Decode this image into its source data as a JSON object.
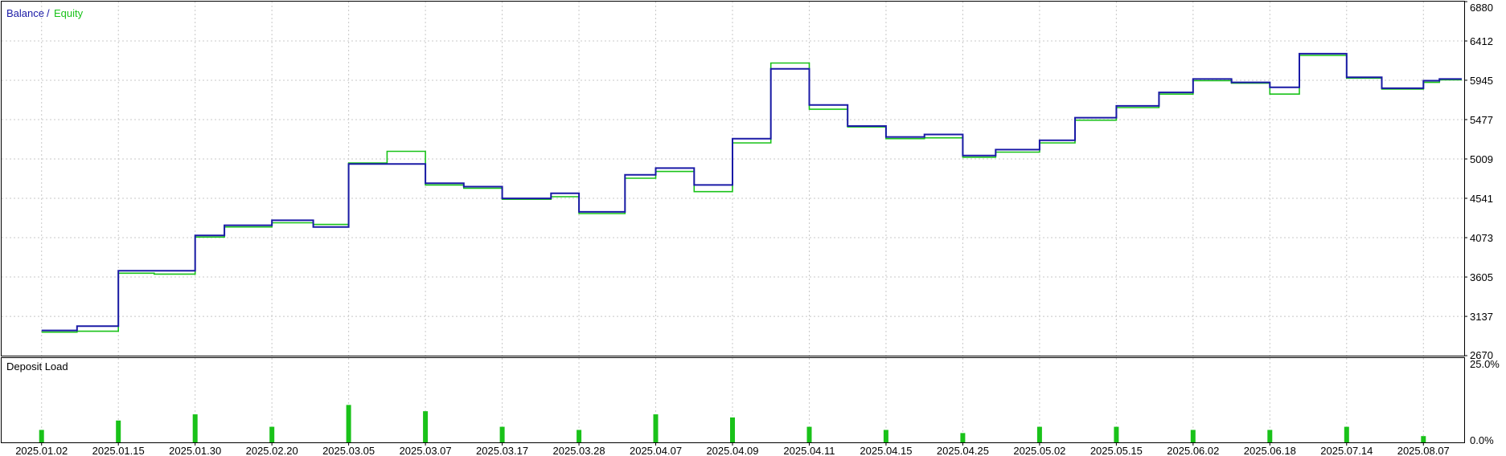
{
  "chart_data": [
    {
      "type": "line",
      "legend": {
        "items": [
          {
            "label": "Balance",
            "color": "#1a1aa6"
          },
          {
            "label": "Equity",
            "color": "#19c219"
          }
        ],
        "separator": "/",
        "placement": "top-left"
      },
      "y_axis": {
        "ticks": [
          "6880",
          "6412",
          "5945",
          "5477",
          "5009",
          "4541",
          "4073",
          "3605",
          "3137",
          "2670"
        ],
        "ylim": [
          2670,
          6880
        ],
        "position": "right"
      },
      "grid": true,
      "x": [
        "2025.01.02",
        "2025.01.08",
        "2025.01.15",
        "2025.01.22",
        "2025.01.30",
        "2025.02.07",
        "2025.02.20",
        "2025.02.27",
        "2025.03.05",
        "2025.03.06",
        "2025.03.07",
        "2025.03.12",
        "2025.03.17",
        "2025.03.24",
        "2025.03.28",
        "2025.04.03",
        "2025.04.07",
        "2025.04.08",
        "2025.04.09",
        "2025.04.10",
        "2025.04.11",
        "2025.04.13",
        "2025.04.15",
        "2025.04.20",
        "2025.04.25",
        "2025.04.28",
        "2025.05.02",
        "2025.05.08",
        "2025.05.15",
        "2025.05.25",
        "2025.06.02",
        "2025.06.10",
        "2025.06.18",
        "2025.06.28",
        "2025.07.14",
        "2025.07.25",
        "2025.08.07",
        "2025.08.12"
      ],
      "series": [
        {
          "name": "Balance",
          "color": "#1a1aa6",
          "values": [
            2970,
            3020,
            3680,
            3680,
            4100,
            4220,
            4280,
            4200,
            4950,
            4950,
            4720,
            4680,
            4540,
            4600,
            4380,
            4820,
            4900,
            4700,
            5250,
            6080,
            5650,
            5400,
            5270,
            5300,
            5050,
            5120,
            5230,
            5500,
            5640,
            5800,
            5960,
            5920,
            5860,
            6260,
            5980,
            5850,
            5940,
            5960
          ]
        },
        {
          "name": "Equity",
          "color": "#19c219",
          "values": [
            2950,
            2960,
            3650,
            3640,
            4080,
            4200,
            4250,
            4230,
            4960,
            5100,
            4700,
            4660,
            4530,
            4560,
            4360,
            4780,
            4860,
            4620,
            5200,
            6150,
            5600,
            5390,
            5250,
            5260,
            5030,
            5090,
            5200,
            5470,
            5620,
            5780,
            5940,
            5910,
            5780,
            6240,
            5970,
            5840,
            5920,
            5950
          ]
        }
      ]
    },
    {
      "type": "bar",
      "title": "Deposit Load",
      "y_axis": {
        "ticks": [
          "25.0%",
          "0.0%"
        ],
        "ylim": [
          0,
          25
        ]
      },
      "color": "#19c219",
      "categories": [
        "2025.01.02",
        "2025.01.15",
        "2025.01.30",
        "2025.02.20",
        "2025.03.05",
        "2025.03.07",
        "2025.03.17",
        "2025.03.28",
        "2025.04.07",
        "2025.04.09",
        "2025.04.11",
        "2025.04.15",
        "2025.04.25",
        "2025.05.02",
        "2025.05.15",
        "2025.06.02",
        "2025.06.18",
        "2025.07.14",
        "2025.08.07"
      ],
      "values": [
        4,
        7,
        9,
        5,
        12,
        10,
        5,
        4,
        9,
        8,
        5,
        4,
        3,
        5,
        5,
        4,
        4,
        5,
        2
      ]
    }
  ],
  "x_axis": {
    "ticks": [
      "2025.01.02",
      "2025.01.15",
      "2025.01.30",
      "2025.02.20",
      "2025.03.05",
      "2025.03.07",
      "2025.03.17",
      "2025.03.28",
      "2025.04.07",
      "2025.04.09",
      "2025.04.11",
      "2025.04.15",
      "2025.04.25",
      "2025.05.02",
      "2025.05.15",
      "2025.06.02",
      "2025.06.18",
      "2025.07.14",
      "2025.08.07"
    ]
  }
}
